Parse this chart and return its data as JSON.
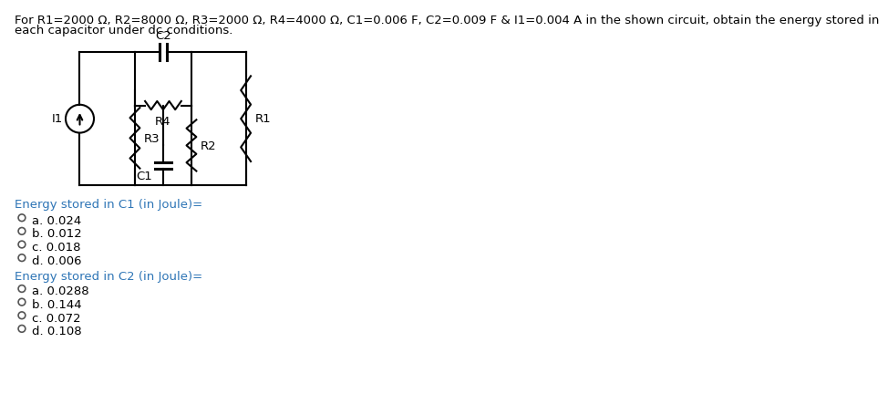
{
  "title_line1": "For R1=2000 Ω, R2=8000 Ω, R3=2000 Ω, R4=4000 Ω, C1=0.006 F, C2=0.009 F & I1=0.004 A in the shown circuit, obtain the energy stored in",
  "title_line2": "each capacitor under dc conditions.",
  "title_color": "#000000",
  "title_fontsize": 9.5,
  "q1_label": "Energy stored in C1 (in Joule)=",
  "q1_color": "#2E75B6",
  "q1_options": [
    "a. 0.024",
    "b. 0.012",
    "c. 0.018",
    "d. 0.006"
  ],
  "q2_label": "Energy stored in C2 (in Joule)=",
  "q2_color": "#2E75B6",
  "q2_options": [
    "a. 0.0288",
    "b. 0.144",
    "c. 0.072",
    "d. 0.108"
  ],
  "bg_color": "#ffffff",
  "text_color": "#000000",
  "option_fontsize": 9.5,
  "label_fontsize": 9.5
}
